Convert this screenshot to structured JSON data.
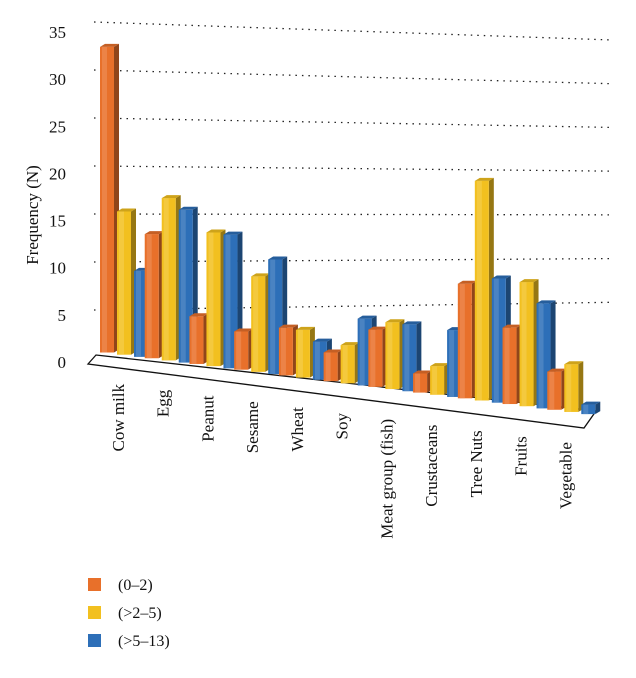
{
  "chart_data": {
    "type": "bar",
    "title": "",
    "xlabel": "",
    "ylabel": "Frequency (N)",
    "ylim": [
      0,
      35
    ],
    "y_ticks": [
      "0",
      "5",
      "10",
      "15",
      "20",
      "25",
      "30",
      "35"
    ],
    "grid": true,
    "legend_position": "bottom-left",
    "categories": [
      "Cow milk",
      "Egg",
      "Peanut",
      "Sesame",
      "Wheat",
      "Soy",
      "Meat group (fish)",
      "Crustaceans",
      "Tree Nuts",
      "Fruits",
      "Vegetable"
    ],
    "series": [
      {
        "name": "(0–2)",
        "color": "#e8702a",
        "values": [
          32,
          13,
          5,
          4,
          5,
          3,
          6,
          2,
          12,
          8,
          4
        ]
      },
      {
        "name": "(>2–5)",
        "color": "#f2c01f",
        "values": [
          15,
          17,
          14,
          10,
          5,
          4,
          7,
          3,
          23,
          13,
          5
        ]
      },
      {
        "name": "(>5–13)",
        "color": "#2d6fb8",
        "values": [
          9,
          16,
          14,
          12,
          4,
          7,
          7,
          7,
          13,
          11,
          1
        ]
      }
    ]
  }
}
